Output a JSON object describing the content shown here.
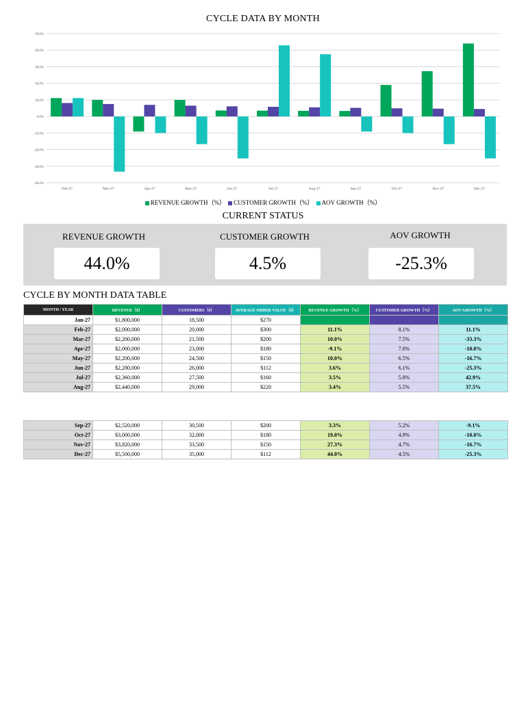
{
  "colors": {
    "revenue": "#00a65a",
    "customer": "#5245a6",
    "aov": "#18c3bd"
  },
  "chart_data": {
    "type": "bar",
    "title": "CYCLE DATA BY MONTH",
    "categories": [
      "Feb-27",
      "Mar-27",
      "Apr-27",
      "May-27",
      "Jun-27",
      "Jul-27",
      "Aug-27",
      "Sep-27",
      "Oct-27",
      "Nov-27",
      "Dec-27"
    ],
    "series": [
      {
        "name": "REVENUE GROWTH（%）",
        "values": [
          11.1,
          10.0,
          -9.1,
          10.0,
          3.6,
          3.5,
          3.4,
          3.3,
          19.0,
          27.3,
          44.0
        ]
      },
      {
        "name": "CUSTOMER GROWTH（%）",
        "values": [
          8.1,
          7.5,
          7.0,
          6.5,
          6.1,
          5.8,
          5.5,
          5.2,
          4.9,
          4.7,
          4.5
        ]
      },
      {
        "name": "AOV GROWTH（%）",
        "values": [
          11.1,
          -33.3,
          -10.0,
          -16.7,
          -25.3,
          42.9,
          37.5,
          -9.1,
          -10.0,
          -16.7,
          -25.3
        ]
      }
    ],
    "yticks": [
      "50.0%",
      "40.0%",
      "30.0%",
      "20.0%",
      "10.0%",
      "0.0%",
      "-10.0%",
      "-20.0%",
      "-30.0%",
      "-40.0%"
    ],
    "ylim": [
      -40,
      50
    ],
    "grid": true,
    "legend": "bottom"
  },
  "status": {
    "title": "CURRENT STATUS",
    "revenue": {
      "label": "REVENUE GROWTH",
      "value": "44.0%"
    },
    "customer": {
      "label": "CUSTOMER GROWTH",
      "value": "4.5%"
    },
    "aov": {
      "label": "AOV GROWTH",
      "value": "-25.3%"
    }
  },
  "table": {
    "title": "CYCLE BY MONTH DATA TABLE",
    "headers": [
      "MONTH / YEAR",
      "REVENUE（$）",
      "CUSTOMERS（#）",
      "AVERAGE ORDER VALUE（$）",
      "REVENUE GROWTH（%）",
      "CUSTOMER GROWTH（%）",
      "AOV GROWTH（%）"
    ],
    "rows_top": [
      [
        "Jan-27",
        "$1,800,000",
        "18,500",
        "$270",
        "",
        "",
        ""
      ],
      [
        "Feb-27",
        "$2,000,000",
        "20,000",
        "$300",
        "11.1%",
        "8.1%",
        "11.1%"
      ],
      [
        "Mar-27",
        "$2,200,000",
        "21,500",
        "$200",
        "10.0%",
        "7.5%",
        "-33.3%"
      ],
      [
        "Apr-27",
        "$2,000,000",
        "23,000",
        "$180",
        "-9.1%",
        "7.0%",
        "-10.0%"
      ],
      [
        "May-27",
        "$2,200,000",
        "24,500",
        "$150",
        "10.0%",
        "6.5%",
        "-16.7%"
      ],
      [
        "Jun-27",
        "$2,280,000",
        "26,000",
        "$112",
        "3.6%",
        "6.1%",
        "-25.3%"
      ],
      [
        "Jul-27",
        "$2,360,000",
        "27,500",
        "$160",
        "3.5%",
        "5.8%",
        "42.9%"
      ],
      [
        "Aug-27",
        "$2,440,000",
        "29,000",
        "$220",
        "3.4%",
        "5.5%",
        "37.5%"
      ]
    ],
    "rows_bottom": [
      [
        "Sep-27",
        "$2,520,000",
        "30,500",
        "$200",
        "3.3%",
        "5.2%",
        "-9.1%"
      ],
      [
        "Oct-27",
        "$3,000,000",
        "32,000",
        "$180",
        "19.0%",
        "4.9%",
        "-10.0%"
      ],
      [
        "Nov-27",
        "$3,820,000",
        "33,500",
        "$150",
        "27.3%",
        "4.7%",
        "-16.7%"
      ],
      [
        "Dec-27",
        "$5,500,000",
        "35,000",
        "$112",
        "44.0%",
        "4.5%",
        "-25.3%"
      ]
    ]
  }
}
